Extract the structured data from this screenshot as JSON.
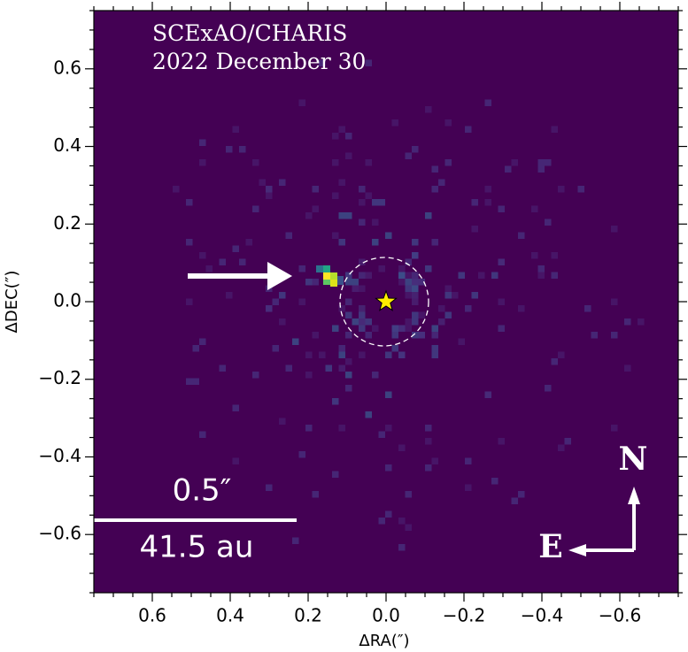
{
  "chart_data": {
    "type": "image",
    "title": "SCExAO/CHARIS",
    "subtitle": "2022 December 30",
    "x_label": "ΔRA(″)",
    "y_label": "ΔDEC(″)",
    "scale_label": "0.5″",
    "scale_distance": "41.5 au",
    "north_label": "N",
    "east_label": "E",
    "background_color": "#440154",
    "xlim": [
      0.75,
      -0.75
    ],
    "ylim": [
      -0.75,
      0.75
    ],
    "xticks": [
      0.6,
      0.4,
      0.2,
      {
        "value": 0,
        "label": "0.0"
      },
      {
        "value": -0.2,
        "label": "−0.2"
      },
      {
        "value": -0.4,
        "label": "−0.4"
      },
      {
        "value": -0.6,
        "label": "−0.6"
      }
    ],
    "yticks": [
      {
        "value": -0.6,
        "label": "−0.6"
      },
      {
        "value": -0.4,
        "label": "−0.4"
      },
      {
        "value": -0.2,
        "label": "−0.2"
      },
      {
        "value": 0,
        "label": "0.0"
      },
      0.2,
      0.4,
      0.6
    ],
    "xminorticks": [
      0.75,
      0.7,
      0.65,
      0.55,
      0.5,
      0.45,
      0.35,
      0.3,
      0.25,
      0.15,
      0.1,
      0.05,
      -0.05,
      -0.1,
      -0.15,
      -0.25,
      -0.3,
      -0.35,
      -0.45,
      -0.5,
      -0.55,
      -0.65,
      -0.7,
      -0.75
    ],
    "yminorticks": [
      0.75,
      0.7,
      0.65,
      0.55,
      0.5,
      0.45,
      0.35,
      0.3,
      0.25,
      0.15,
      0.1,
      0.05,
      -0.05,
      -0.1,
      -0.15,
      -0.25,
      -0.3,
      -0.35,
      -0.45,
      -0.5,
      -0.55,
      -0.65,
      -0.7,
      -0.75
    ]
  }
}
